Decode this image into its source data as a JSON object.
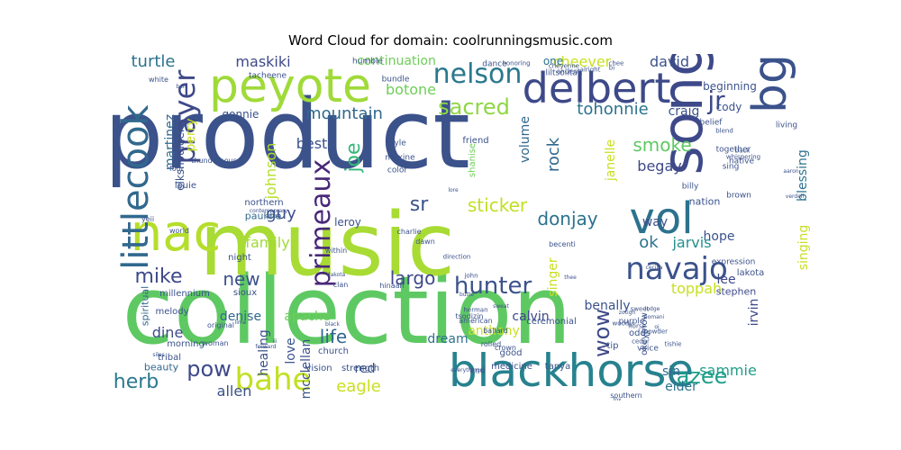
{
  "title": "Word Cloud for domain: coolrunningsmusic.com",
  "colors": [
    "#440154",
    "#482878",
    "#3e4989",
    "#31688e",
    "#26828e",
    "#1f9e89",
    "#35b779",
    "#6ece58",
    "#b5de2b",
    "#fde725"
  ],
  "words": [
    {
      "text": "product",
      "size": 106,
      "color": "#3b528b",
      "rotate": 0
    },
    {
      "text": "collection",
      "size": 104,
      "color": "#5ec962",
      "rotate": 0
    },
    {
      "text": "music",
      "size": 96,
      "color": "#a8db34",
      "rotate": 0
    },
    {
      "text": "song",
      "size": 62,
      "color": "#3e4989",
      "rotate": 90
    },
    {
      "text": "nac",
      "size": 56,
      "color": "#b5de2b",
      "rotate": 0
    },
    {
      "text": "blackhorse",
      "size": 50,
      "color": "#26828e",
      "rotate": 0
    },
    {
      "text": "vol",
      "size": 48,
      "color": "#2c728e",
      "rotate": 0
    },
    {
      "text": "peyote",
      "size": 52,
      "color": "#a0da39",
      "rotate": 0
    },
    {
      "text": "delbert",
      "size": 46,
      "color": "#3e4989",
      "rotate": 0
    },
    {
      "text": "littlecook",
      "size": 40,
      "color": "#31688e",
      "rotate": 90
    },
    {
      "text": "bg",
      "size": 52,
      "color": "#3b528b",
      "rotate": 90
    },
    {
      "text": "navajo",
      "size": 34,
      "color": "#3b528b",
      "rotate": 0
    },
    {
      "text": "bahe",
      "size": 34,
      "color": "#c2df23",
      "rotate": 0
    },
    {
      "text": "prayer",
      "size": 32,
      "color": "#3e4989",
      "rotate": 90
    },
    {
      "text": "primeaux",
      "size": 30,
      "color": "#482878",
      "rotate": 90
    },
    {
      "text": "nelson",
      "size": 30,
      "color": "#2a788e",
      "rotate": 0
    },
    {
      "text": "hunter",
      "size": 26,
      "color": "#3b528b",
      "rotate": 0
    },
    {
      "text": "jr",
      "size": 28,
      "color": "#3e4989",
      "rotate": 0
    },
    {
      "text": "sacred",
      "size": 24,
      "color": "#8fd744",
      "rotate": 0
    },
    {
      "text": "pow",
      "size": 24,
      "color": "#3e4989",
      "rotate": 0
    },
    {
      "text": "herb",
      "size": 22,
      "color": "#2a788e",
      "rotate": 0
    },
    {
      "text": "wow",
      "size": 24,
      "color": "#3e4989",
      "rotate": 90
    },
    {
      "text": "azee",
      "size": 24,
      "color": "#1f9e89",
      "rotate": 0
    },
    {
      "text": "mike",
      "size": 22,
      "color": "#3e4989",
      "rotate": 0
    },
    {
      "text": "sticker",
      "size": 20,
      "color": "#c2df23",
      "rotate": 0
    },
    {
      "text": "donjay",
      "size": 20,
      "color": "#2c728e",
      "rotate": 0
    },
    {
      "text": "sr",
      "size": 22,
      "color": "#3b528b",
      "rotate": 0
    },
    {
      "text": "joe",
      "size": 22,
      "color": "#35b779",
      "rotate": 90
    },
    {
      "text": "smoke",
      "size": 20,
      "color": "#5ec962",
      "rotate": 0
    },
    {
      "text": "life",
      "size": 20,
      "color": "#31688e",
      "rotate": 0
    },
    {
      "text": "new",
      "size": 20,
      "color": "#3b528b",
      "rotate": 0
    },
    {
      "text": "largo",
      "size": 20,
      "color": "#3e4989",
      "rotate": 0
    },
    {
      "text": "eagle",
      "size": 18,
      "color": "#c8e020",
      "rotate": 0
    },
    {
      "text": "mountain",
      "size": 18,
      "color": "#31688e",
      "rotate": 0
    },
    {
      "text": "tohonnie",
      "size": 18,
      "color": "#2c728e",
      "rotate": 0
    },
    {
      "text": "ok",
      "size": 18,
      "color": "#2c728e",
      "rotate": 0
    },
    {
      "text": "rock",
      "size": 18,
      "color": "#31688e",
      "rotate": 90
    },
    {
      "text": "guy",
      "size": 18,
      "color": "#3b528b",
      "rotate": 0
    },
    {
      "text": "turtle",
      "size": 18,
      "color": "#2c728e",
      "rotate": 0
    },
    {
      "text": "maskiki",
      "size": 16,
      "color": "#3e4989",
      "rotate": 0
    },
    {
      "text": "botone",
      "size": 16,
      "color": "#6ece58",
      "rotate": 0
    },
    {
      "text": "david",
      "size": 16,
      "color": "#3b528b",
      "rotate": 0
    },
    {
      "text": "cheever",
      "size": 16,
      "color": "#c8e020",
      "rotate": 0
    },
    {
      "text": "continuation",
      "size": 14,
      "color": "#6ece58",
      "rotate": 0
    },
    {
      "text": "allen",
      "size": 16,
      "color": "#3b528b",
      "rotate": 0
    },
    {
      "text": "jarvis",
      "size": 16,
      "color": "#21918c",
      "rotate": 0
    },
    {
      "text": "begay",
      "size": 16,
      "color": "#3e4989",
      "rotate": 0
    },
    {
      "text": "sammie",
      "size": 16,
      "color": "#1f9e89",
      "rotate": 0
    },
    {
      "text": "toppah",
      "size": 16,
      "color": "#c8e020",
      "rotate": 0
    },
    {
      "text": "dine",
      "size": 16,
      "color": "#3e4989",
      "rotate": 0
    },
    {
      "text": "family",
      "size": 16,
      "color": "#a0da39",
      "rotate": 0
    },
    {
      "text": "best",
      "size": 16,
      "color": "#3b528b",
      "rotate": 0
    },
    {
      "text": "johnson",
      "size": 16,
      "color": "#b5de2b",
      "rotate": 90
    },
    {
      "text": "janelle",
      "size": 14,
      "color": "#c8e020",
      "rotate": 90
    },
    {
      "text": "volume",
      "size": 14,
      "color": "#31688e",
      "rotate": 90
    },
    {
      "text": "singer",
      "size": 14,
      "color": "#c8e020",
      "rotate": 90
    },
    {
      "text": "martinez",
      "size": 14,
      "color": "#31688e",
      "rotate": 90
    },
    {
      "text": "perry",
      "size": 14,
      "color": "#c8e020",
      "rotate": 90
    },
    {
      "text": "benally",
      "size": 14,
      "color": "#3b528b",
      "rotate": 0
    },
    {
      "text": "calvin",
      "size": 14,
      "color": "#3e4989",
      "rotate": 0
    },
    {
      "text": "anthony",
      "size": 14,
      "color": "#c8e020",
      "rotate": 0
    },
    {
      "text": "dream",
      "size": 14,
      "color": "#2c728e",
      "rotate": 0
    },
    {
      "text": "apache",
      "size": 14,
      "color": "#6ece58",
      "rotate": 0
    },
    {
      "text": "mcclellan",
      "size": 14,
      "color": "#3b528b",
      "rotate": 90
    },
    {
      "text": "love",
      "size": 14,
      "color": "#3b528b",
      "rotate": 90
    },
    {
      "text": "healing",
      "size": 14,
      "color": "#3b528b",
      "rotate": 90
    },
    {
      "text": "denise",
      "size": 14,
      "color": "#31688e",
      "rotate": 0
    },
    {
      "text": "sin",
      "size": 14,
      "color": "#31688e",
      "rotate": 0
    },
    {
      "text": "elder",
      "size": 14,
      "color": "#2c728e",
      "rotate": 0
    },
    {
      "text": "red",
      "size": 14,
      "color": "#3b528b",
      "rotate": 0
    },
    {
      "text": "hope",
      "size": 14,
      "color": "#3b528b",
      "rotate": 0
    },
    {
      "text": "lee",
      "size": 14,
      "color": "#3e4989",
      "rotate": 0
    },
    {
      "text": "irvin",
      "size": 14,
      "color": "#3e4989",
      "rotate": 90
    },
    {
      "text": "craig",
      "size": 14,
      "color": "#3b528b",
      "rotate": 0
    },
    {
      "text": "blessing",
      "size": 14,
      "color": "#2c728e",
      "rotate": 90
    },
    {
      "text": "singing",
      "size": 14,
      "color": "#c8e020",
      "rotate": 90
    },
    {
      "text": "way",
      "size": 14,
      "color": "#3b528b",
      "rotate": 0
    },
    {
      "text": "beginning",
      "size": 12,
      "color": "#3b528b",
      "rotate": 0
    },
    {
      "text": "cody",
      "size": 12,
      "color": "#3b528b",
      "rotate": 0
    },
    {
      "text": "one",
      "size": 12,
      "color": "#2c728e",
      "rotate": 0
    },
    {
      "text": "leroy",
      "size": 12,
      "color": "#3b528b",
      "rotate": 0
    },
    {
      "text": "gonnie",
      "size": 12,
      "color": "#3b528b",
      "rotate": 0
    },
    {
      "text": "pauline",
      "size": 11,
      "color": "#31688e",
      "rotate": 0
    },
    {
      "text": "nation",
      "size": 11,
      "color": "#3b528b",
      "rotate": 0
    },
    {
      "text": "stephen",
      "size": 11,
      "color": "#3e4989",
      "rotate": 0
    },
    {
      "text": "spiritual",
      "size": 11,
      "color": "#31688e",
      "rotate": 90
    },
    {
      "text": "beauty",
      "size": 11,
      "color": "#31688e",
      "rotate": 0
    },
    {
      "text": "morning",
      "size": 10,
      "color": "#3b528b",
      "rotate": 0
    },
    {
      "text": "melody",
      "size": 10,
      "color": "#3b528b",
      "rotate": 0
    },
    {
      "text": "tribal",
      "size": 10,
      "color": "#3b528b",
      "rotate": 0
    },
    {
      "text": "night",
      "size": 10,
      "color": "#3b528b",
      "rotate": 0
    },
    {
      "text": "louie",
      "size": 10,
      "color": "#3b528b",
      "rotate": 0
    },
    {
      "text": "elkshoulder",
      "size": 12,
      "color": "#3b528b",
      "rotate": 90
    },
    {
      "text": "shanise",
      "size": 10,
      "color": "#6ece58",
      "rotate": 90
    },
    {
      "text": "friend",
      "size": 10,
      "color": "#3b528b",
      "rotate": 0
    },
    {
      "text": "northern",
      "size": 10,
      "color": "#3b528b",
      "rotate": 0
    },
    {
      "text": "millennium",
      "size": 10,
      "color": "#3b528b",
      "rotate": 0
    },
    {
      "text": "sioux",
      "size": 10,
      "color": "#3b528b",
      "rotate": 0
    },
    {
      "text": "church",
      "size": 10,
      "color": "#3b528b",
      "rotate": 0
    },
    {
      "text": "strength",
      "size": 10,
      "color": "#3b528b",
      "rotate": 0
    },
    {
      "text": "vision",
      "size": 10,
      "color": "#3b528b",
      "rotate": 0
    },
    {
      "text": "medicine",
      "size": 10,
      "color": "#3b528b",
      "rotate": 0
    },
    {
      "text": "tanya",
      "size": 10,
      "color": "#3b528b",
      "rotate": 0
    },
    {
      "text": "okeymow",
      "size": 10,
      "color": "#3b528b",
      "rotate": 90
    },
    {
      "text": "ceremonial",
      "size": 10,
      "color": "#3b528b",
      "rotate": 0
    },
    {
      "text": "good",
      "size": 10,
      "color": "#3b528b",
      "rotate": 0
    },
    {
      "text": "end",
      "size": 9,
      "color": "#3b528b",
      "rotate": 0
    },
    {
      "text": "tip",
      "size": 10,
      "color": "#3b528b",
      "rotate": 0
    },
    {
      "text": "odds",
      "size": 10,
      "color": "#3b528b",
      "rotate": 0
    },
    {
      "text": "voice",
      "size": 9,
      "color": "#3b528b",
      "rotate": 0
    },
    {
      "text": "purple",
      "size": 9,
      "color": "#3b528b",
      "rotate": 0
    },
    {
      "text": "lakota",
      "size": 10,
      "color": "#3b528b",
      "rotate": 0
    },
    {
      "text": "expression",
      "size": 9,
      "color": "#3b528b",
      "rotate": 0
    },
    {
      "text": "brown",
      "size": 9,
      "color": "#3b528b",
      "rotate": 0
    },
    {
      "text": "billy",
      "size": 9,
      "color": "#3b528b",
      "rotate": 0
    },
    {
      "text": "together",
      "size": 9,
      "color": "#3b528b",
      "rotate": 0
    },
    {
      "text": "native",
      "size": 9,
      "color": "#3b528b",
      "rotate": 0
    },
    {
      "text": "sing",
      "size": 9,
      "color": "#3b528b",
      "rotate": 0
    },
    {
      "text": "living",
      "size": 9,
      "color": "#3b528b",
      "rotate": 0
    },
    {
      "text": "belief",
      "size": 9,
      "color": "#3b528b",
      "rotate": 0
    },
    {
      "text": "style",
      "size": 9,
      "color": "#3b528b",
      "rotate": 0
    },
    {
      "text": "maxine",
      "size": 9,
      "color": "#3b528b",
      "rotate": 0
    },
    {
      "text": "color",
      "size": 9,
      "color": "#3b528b",
      "rotate": 0
    },
    {
      "text": "dance",
      "size": 9,
      "color": "#3b528b",
      "rotate": 0
    },
    {
      "text": "humble",
      "size": 9,
      "color": "#3b528b",
      "rotate": 0
    },
    {
      "text": "tacheene",
      "size": 9,
      "color": "#3b528b",
      "rotate": 0
    },
    {
      "text": "bundle",
      "size": 9,
      "color": "#3b528b",
      "rotate": 0
    },
    {
      "text": "liltsoiitah",
      "size": 9,
      "color": "#3b528b",
      "rotate": 0
    },
    {
      "text": "white",
      "size": 8,
      "color": "#3b528b",
      "rotate": 0
    },
    {
      "text": "four",
      "size": 8,
      "color": "#3b528b",
      "rotate": 0
    },
    {
      "text": "dawn",
      "size": 8,
      "color": "#3b528b",
      "rotate": 0
    },
    {
      "text": "becenti",
      "size": 8,
      "color": "#3b528b",
      "rotate": 0
    },
    {
      "text": "yeii",
      "size": 8,
      "color": "#3b528b",
      "rotate": 0
    },
    {
      "text": "hinaah",
      "size": 8,
      "color": "#3b528b",
      "rotate": 0
    },
    {
      "text": "clan",
      "size": 8,
      "color": "#3b528b",
      "rotate": 0
    },
    {
      "text": "tsodizin",
      "size": 8,
      "color": "#3b528b",
      "rotate": 0
    },
    {
      "text": "ballard",
      "size": 8,
      "color": "#3b528b",
      "rotate": 0
    },
    {
      "text": "american",
      "size": 8,
      "color": "#3b528b",
      "rotate": 0
    },
    {
      "text": "crown",
      "size": 8,
      "color": "#3b528b",
      "rotate": 0
    },
    {
      "text": "rolled",
      "size": 8,
      "color": "#3b528b",
      "rotate": 0
    },
    {
      "text": "charlie",
      "size": 8,
      "color": "#3b528b",
      "rotate": 0
    },
    {
      "text": "within",
      "size": 8,
      "color": "#3b528b",
      "rotate": 0
    },
    {
      "text": "southern",
      "size": 8,
      "color": "#3b528b",
      "rotate": 0
    },
    {
      "text": "road",
      "size": 8,
      "color": "#3b528b",
      "rotate": 0
    },
    {
      "text": "cheii",
      "size": 8,
      "color": "#3b528b",
      "rotate": 0
    },
    {
      "text": "son",
      "size": 8,
      "color": "#3b528b",
      "rotate": 0
    },
    {
      "text": "original",
      "size": 8,
      "color": "#3b528b",
      "rotate": 0
    },
    {
      "text": "woman",
      "size": 8,
      "color": "#3b528b",
      "rotate": 0
    },
    {
      "text": "thunderhouse",
      "size": 8,
      "color": "#3b528b",
      "rotate": 0
    },
    {
      "text": "whispering",
      "size": 7,
      "color": "#3b528b",
      "rotate": 0
    },
    {
      "text": "honoring",
      "size": 7,
      "color": "#3b528b",
      "rotate": 0
    },
    {
      "text": "cheyenne",
      "size": 7,
      "color": "#3b528b",
      "rotate": 0
    },
    {
      "text": "direction",
      "size": 7,
      "color": "#3b528b",
      "rotate": 0
    },
    {
      "text": "herman",
      "size": 7,
      "color": "#3b528b",
      "rotate": 0
    },
    {
      "text": "horse",
      "size": 7,
      "color": "#3b528b",
      "rotate": 0
    },
    {
      "text": "powder",
      "size": 7,
      "color": "#3b528b",
      "rotate": 0
    },
    {
      "text": "cedar",
      "size": 7,
      "color": "#3b528b",
      "rotate": 0
    },
    {
      "text": "john",
      "size": 7,
      "color": "#3b528b",
      "rotate": 0
    },
    {
      "text": "tishie",
      "size": 7,
      "color": "#3b528b",
      "rotate": 0
    },
    {
      "text": "woody",
      "size": 7,
      "color": "#3b528b",
      "rotate": 0
    },
    {
      "text": "sweet",
      "size": 7,
      "color": "#3b528b",
      "rotate": 0
    },
    {
      "text": "blend",
      "size": 7,
      "color": "#3b528b",
      "rotate": 0
    },
    {
      "text": "back",
      "size": 7,
      "color": "#3b528b",
      "rotate": 0
    },
    {
      "text": "alright",
      "size": 7,
      "color": "#3b528b",
      "rotate": 0
    },
    {
      "text": "chee",
      "size": 7,
      "color": "#3b528b",
      "rotate": 0
    },
    {
      "text": "ancient",
      "size": 7,
      "color": "#3b528b",
      "rotate": 0
    },
    {
      "text": "bi",
      "size": 7,
      "color": "#3b528b",
      "rotate": 0
    },
    {
      "text": "silas",
      "size": 6,
      "color": "#3b528b",
      "rotate": 0
    },
    {
      "text": "dakota",
      "size": 6,
      "color": "#3b528b",
      "rotate": 0
    },
    {
      "text": "aaron",
      "size": 6,
      "color": "#3b528b",
      "rotate": 0
    },
    {
      "text": "verdell",
      "size": 6,
      "color": "#3b528b",
      "rotate": 0
    },
    {
      "text": "contemporary",
      "size": 6,
      "color": "#3b528b",
      "rotate": 0
    },
    {
      "text": "shiloh",
      "size": 6,
      "color": "#3b528b",
      "rotate": 0
    },
    {
      "text": "lore",
      "size": 6,
      "color": "#3b528b",
      "rotate": 0
    },
    {
      "text": "lodge",
      "size": 6,
      "color": "#3b528b",
      "rotate": 0
    },
    {
      "text": "zotigh",
      "size": 6,
      "color": "#3b528b",
      "rotate": 0
    },
    {
      "text": "cecilia",
      "size": 6,
      "color": "#3b528b",
      "rotate": 0
    },
    {
      "text": "sweat",
      "size": 6,
      "color": "#3b528b",
      "rotate": 0
    },
    {
      "text": "butte",
      "size": 6,
      "color": "#3b528b",
      "rotate": 0
    },
    {
      "text": "black",
      "size": 6,
      "color": "#3b528b",
      "rotate": 0
    },
    {
      "text": "forward",
      "size": 6,
      "color": "#3b528b",
      "rotate": 0
    },
    {
      "text": "everythings",
      "size": 6,
      "color": "#3b528b",
      "rotate": 0
    },
    {
      "text": "pomani",
      "size": 6,
      "color": "#3b528b",
      "rotate": 0
    },
    {
      "text": "gap",
      "size": 6,
      "color": "#3b528b",
      "rotate": 0
    },
    {
      "text": "fox",
      "size": 6,
      "color": "#3b528b",
      "rotate": 0
    },
    {
      "text": "icon",
      "size": 6,
      "color": "#3b528b",
      "rotate": 0
    },
    {
      "text": "ben",
      "size": 6,
      "color": "#3b528b",
      "rotate": 0
    },
    {
      "text": "world",
      "size": 8,
      "color": "#3b528b",
      "rotate": 0
    },
    {
      "text": "iii",
      "size": 6,
      "color": "#3b528b",
      "rotate": 0
    },
    {
      "text": "oj",
      "size": 6,
      "color": "#3b528b",
      "rotate": 0
    },
    {
      "text": "lime",
      "size": 6,
      "color": "#3b528b",
      "rotate": 0
    },
    {
      "text": "thee",
      "size": 6,
      "color": "#3b528b",
      "rotate": 0
    }
  ]
}
